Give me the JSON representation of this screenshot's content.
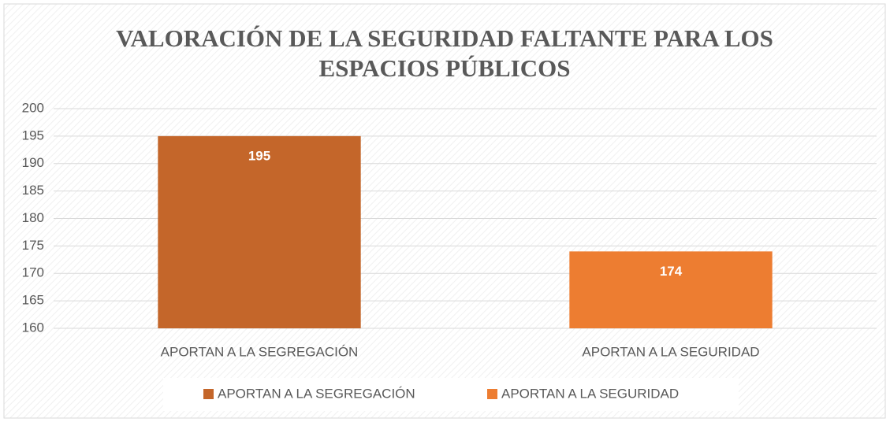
{
  "chart_data": {
    "type": "bar",
    "title": "VALORACIÓN DE LA SEGURIDAD FALTANTE PARA LOS ESPACIOS PÚBLICOS",
    "categories": [
      "APORTAN A LA SEGREGACIÓN",
      "APORTAN A LA SEGURIDAD"
    ],
    "values": [
      195,
      174
    ],
    "colors": [
      "#c4662a",
      "#ed7d31"
    ],
    "ylim": [
      160,
      200
    ],
    "yticks": [
      160,
      165,
      170,
      175,
      180,
      185,
      190,
      195,
      200
    ],
    "grid": true,
    "legend": "bottom"
  }
}
